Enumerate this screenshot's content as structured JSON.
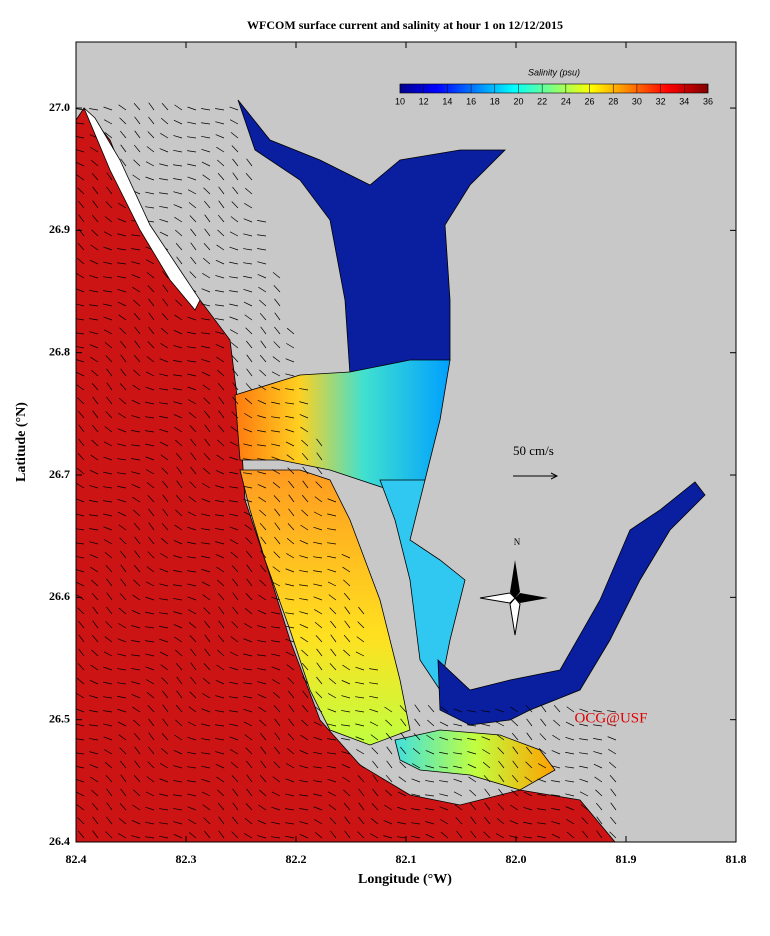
{
  "map": {
    "title": "WFCOM surface current and salinity at hour 1 on 12/12/2015",
    "xlabel": "Longitude (°W)",
    "ylabel": "Latitude (°N)",
    "xlim": [
      82.4,
      81.8
    ],
    "ylim": [
      26.4,
      27.054
    ],
    "xticks": [
      82.4,
      82.3,
      82.2,
      82.1,
      {
        "value": 82,
        "label": "82.0"
      },
      81.9,
      81.8
    ],
    "yticks": [
      26.4,
      26.5,
      26.6,
      26.7,
      26.8,
      26.9,
      {
        "value": 27,
        "label": "27.0"
      }
    ],
    "colorbar": {
      "label": "Salinity (psu)",
      "range": [
        10,
        36
      ],
      "ticks": [
        10,
        12,
        14,
        16,
        18,
        20,
        22,
        24,
        26,
        28,
        30,
        32,
        34,
        36
      ]
    },
    "scale_label": "50 cm/s",
    "north_label": "N",
    "credit": "OCG@USF"
  }
}
